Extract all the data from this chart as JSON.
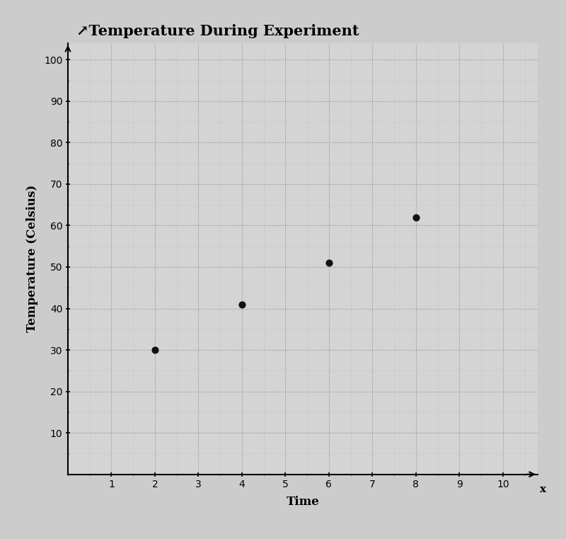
{
  "title": "↗Temperature During Experiment",
  "xlabel": "Time",
  "ylabel": "Temperature (Celsius)",
  "x_label_end": "x",
  "x_data": [
    2,
    4,
    6,
    8
  ],
  "y_data": [
    30,
    41,
    51,
    62
  ],
  "xlim": [
    0,
    10.8
  ],
  "ylim": [
    0,
    104
  ],
  "xticks": [
    1,
    2,
    3,
    4,
    5,
    6,
    7,
    8,
    9,
    10
  ],
  "yticks": [
    10,
    20,
    30,
    40,
    50,
    60,
    70,
    80,
    90,
    100
  ],
  "background_color": "#cccccc",
  "plot_bg_color": "#d4d4d4",
  "grid_major_color": "#888888",
  "grid_minor_color": "#aaaaaa",
  "point_color": "#111111",
  "point_size": 40,
  "title_fontsize": 15,
  "axis_label_fontsize": 12,
  "tick_fontsize": 11,
  "font_family": "serif"
}
